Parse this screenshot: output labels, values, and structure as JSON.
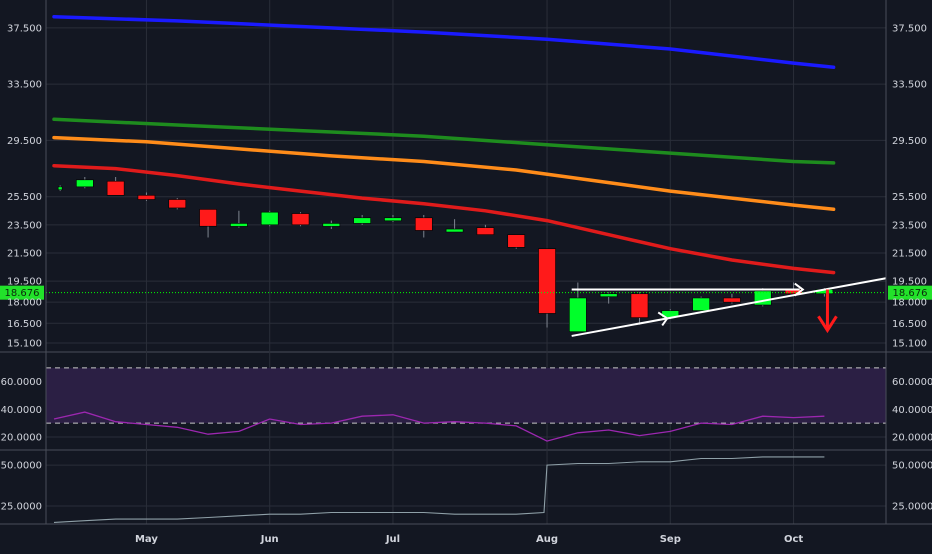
{
  "colors": {
    "background": "#131722",
    "grid": "#2a2e39",
    "axis_text": "#d1d4dc",
    "bull": "#00ff2a",
    "bear": "#ff1a1a",
    "price_line": "#00ff00",
    "price_badge": "#22e22a",
    "rsi_band": "#2b1f44",
    "rsi_line": "#9c27b0",
    "lower_line": "#8fa0a8",
    "trend": "#ffffff",
    "arrow": "#ff1a1a"
  },
  "chart_data": [
    {
      "type": "candlestick",
      "panel": "price",
      "ylim": [
        14.6,
        39.2
      ],
      "x_domain": [
        0,
        27
      ],
      "y_ticks": [
        "37.500",
        "33.500",
        "29.500",
        "25.500",
        "23.500",
        "21.500",
        "19.500",
        "18.000",
        "16.500",
        "15.100"
      ],
      "x_labels": [
        {
          "label": "May",
          "x": 3
        },
        {
          "label": "Jun",
          "x": 7
        },
        {
          "label": "Jul",
          "x": 11
        },
        {
          "label": "Aug",
          "x": 16
        },
        {
          "label": "Sep",
          "x": 20
        },
        {
          "label": "Oct",
          "x": 24
        }
      ],
      "last_price": "18.676",
      "last_value": 18.676,
      "candles": [
        {
          "x": 0.2,
          "o": 26.1,
          "h": 26.3,
          "l": 25.9,
          "c": 26.2
        },
        {
          "x": 1,
          "o": 26.2,
          "h": 26.9,
          "l": 26.1,
          "c": 26.7
        },
        {
          "x": 2,
          "o": 26.6,
          "h": 26.9,
          "l": 25.6,
          "c": 25.6
        },
        {
          "x": 3,
          "o": 25.6,
          "h": 25.8,
          "l": 25.2,
          "c": 25.3
        },
        {
          "x": 4,
          "o": 25.3,
          "h": 25.4,
          "l": 24.6,
          "c": 24.7
        },
        {
          "x": 5,
          "o": 24.6,
          "h": 24.6,
          "l": 22.6,
          "c": 23.4
        },
        {
          "x": 6,
          "o": 23.4,
          "h": 24.5,
          "l": 23.3,
          "c": 23.6
        },
        {
          "x": 7,
          "o": 23.5,
          "h": 24.5,
          "l": 23.4,
          "c": 24.4
        },
        {
          "x": 8,
          "o": 24.3,
          "h": 24.4,
          "l": 23.4,
          "c": 23.5
        },
        {
          "x": 9,
          "o": 23.4,
          "h": 23.8,
          "l": 23.2,
          "c": 23.6
        },
        {
          "x": 10,
          "o": 23.6,
          "h": 24.2,
          "l": 23.5,
          "c": 24.0
        },
        {
          "x": 11,
          "o": 23.8,
          "h": 24.2,
          "l": 23.7,
          "c": 24.0
        },
        {
          "x": 12,
          "o": 24.0,
          "h": 24.2,
          "l": 22.6,
          "c": 23.1
        },
        {
          "x": 13,
          "o": 23.1,
          "h": 23.9,
          "l": 23.0,
          "c": 23.2
        },
        {
          "x": 14,
          "o": 23.3,
          "h": 23.5,
          "l": 22.8,
          "c": 22.8
        },
        {
          "x": 15,
          "o": 22.8,
          "h": 22.8,
          "l": 21.8,
          "c": 21.9
        },
        {
          "x": 16,
          "o": 21.8,
          "h": 21.8,
          "l": 16.2,
          "c": 17.2
        },
        {
          "x": 17,
          "o": 15.9,
          "h": 19.4,
          "l": 15.9,
          "c": 18.3
        },
        {
          "x": 18,
          "o": 18.5,
          "h": 18.7,
          "l": 17.9,
          "c": 18.6
        },
        {
          "x": 19,
          "o": 18.6,
          "h": 18.7,
          "l": 16.4,
          "c": 16.9
        },
        {
          "x": 20,
          "o": 16.9,
          "h": 17.5,
          "l": 16.8,
          "c": 17.4
        },
        {
          "x": 21,
          "o": 17.4,
          "h": 18.4,
          "l": 17.3,
          "c": 18.3
        },
        {
          "x": 22,
          "o": 18.3,
          "h": 18.6,
          "l": 17.9,
          "c": 18.0
        },
        {
          "x": 23,
          "o": 17.8,
          "h": 19.0,
          "l": 17.7,
          "c": 18.8
        },
        {
          "x": 24,
          "o": 18.9,
          "h": 19.4,
          "l": 18.6,
          "c": 18.6
        },
        {
          "x": 25,
          "o": 18.6,
          "h": 19.0,
          "l": 18.4,
          "c": 18.9
        }
      ],
      "moving_averages": [
        {
          "color": "#1a1aff",
          "x": [
            0,
            4,
            8,
            12,
            16,
            20,
            24,
            25.3
          ],
          "y": [
            38.3,
            38.0,
            37.6,
            37.2,
            36.7,
            36.0,
            35.0,
            34.7
          ]
        },
        {
          "color": "#1e8c1e",
          "x": [
            0,
            4,
            8,
            12,
            16,
            20,
            24,
            25.3
          ],
          "y": [
            31.0,
            30.6,
            30.2,
            29.8,
            29.2,
            28.6,
            28.0,
            27.9
          ]
        },
        {
          "color": "#ff8c1a",
          "x": [
            0,
            3,
            6,
            9,
            12,
            15,
            18,
            20,
            22,
            24,
            25.3
          ],
          "y": [
            29.7,
            29.4,
            28.9,
            28.4,
            28.0,
            27.4,
            26.5,
            25.9,
            25.4,
            24.9,
            24.6
          ]
        },
        {
          "color": "#e01b1b",
          "x": [
            0,
            2,
            4,
            6,
            8,
            10,
            12,
            14,
            16,
            18,
            20,
            22,
            24,
            25.3
          ],
          "y": [
            27.7,
            27.5,
            27.0,
            26.4,
            25.9,
            25.4,
            25.0,
            24.5,
            23.8,
            22.8,
            21.8,
            21.0,
            20.4,
            20.1
          ]
        }
      ],
      "annotations": {
        "resistance": {
          "x": [
            16.8,
            24.2
          ],
          "y": [
            18.9,
            18.9
          ]
        },
        "support": {
          "x": [
            16.8,
            27.0
          ],
          "y": [
            15.6,
            19.7
          ]
        },
        "arrow_up_x": [
          19.9,
          24.3
        ],
        "down_arrow": {
          "x": 25.1,
          "y": [
            18.9,
            16.0
          ]
        }
      }
    },
    {
      "type": "line",
      "panel": "rsi",
      "ylim": [
        12,
        80
      ],
      "y_ticks": [
        "60.0000",
        "40.0000",
        "20.0000"
      ],
      "y_tick_values": [
        60,
        40,
        20
      ],
      "band": [
        30,
        70
      ],
      "x": [
        0,
        1,
        2,
        3,
        4,
        5,
        6,
        7,
        8,
        9,
        10,
        11,
        12,
        13,
        14,
        15,
        16,
        17,
        18,
        19,
        20,
        21,
        22,
        23,
        24,
        25
      ],
      "values": [
        33,
        38,
        31,
        29,
        27,
        22,
        24,
        33,
        29,
        30,
        35,
        36,
        30,
        31,
        30,
        28,
        17,
        23,
        25,
        21,
        24,
        30,
        29,
        35,
        34,
        35
      ]
    },
    {
      "type": "line",
      "panel": "lower",
      "ylim": [
        14,
        58
      ],
      "y_ticks": [
        "50.0000",
        "25.0000"
      ],
      "y_tick_values": [
        50,
        25
      ],
      "x": [
        0,
        1,
        2,
        3,
        4,
        5,
        6,
        7,
        8,
        9,
        10,
        11,
        12,
        13,
        14,
        15,
        15.9,
        16,
        17,
        18,
        19,
        20,
        21,
        22,
        23,
        24,
        25
      ],
      "values": [
        15,
        16,
        17,
        17,
        17,
        18,
        19,
        20,
        20,
        21,
        21,
        21,
        21,
        20,
        20,
        20,
        21,
        50,
        51,
        51,
        52,
        52,
        54,
        54,
        55,
        55,
        55
      ]
    }
  ]
}
